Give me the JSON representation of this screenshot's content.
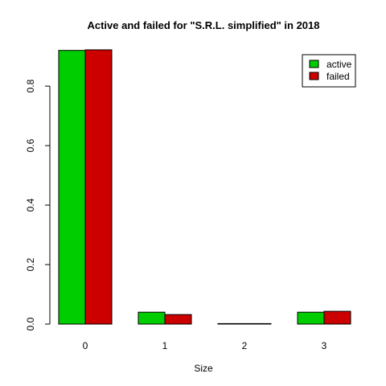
{
  "chart_data": {
    "type": "bar",
    "title": "Active and failed for \"S.R.L. simplified\" in 2018",
    "xlabel": "Size",
    "ylabel": "",
    "categories": [
      "0",
      "1",
      "2",
      "3"
    ],
    "series": [
      {
        "name": "active",
        "color": "#00CD00",
        "values": [
          0.92,
          0.04,
          0.001,
          0.04
        ]
      },
      {
        "name": "failed",
        "color": "#CD0000",
        "values": [
          0.922,
          0.032,
          0.001,
          0.043
        ]
      }
    ],
    "ylim": [
      0,
      0.93
    ],
    "yticks": [
      "0.0",
      "0.2",
      "0.4",
      "0.6",
      "0.8"
    ],
    "grid": false,
    "legend_position": "top-right"
  }
}
